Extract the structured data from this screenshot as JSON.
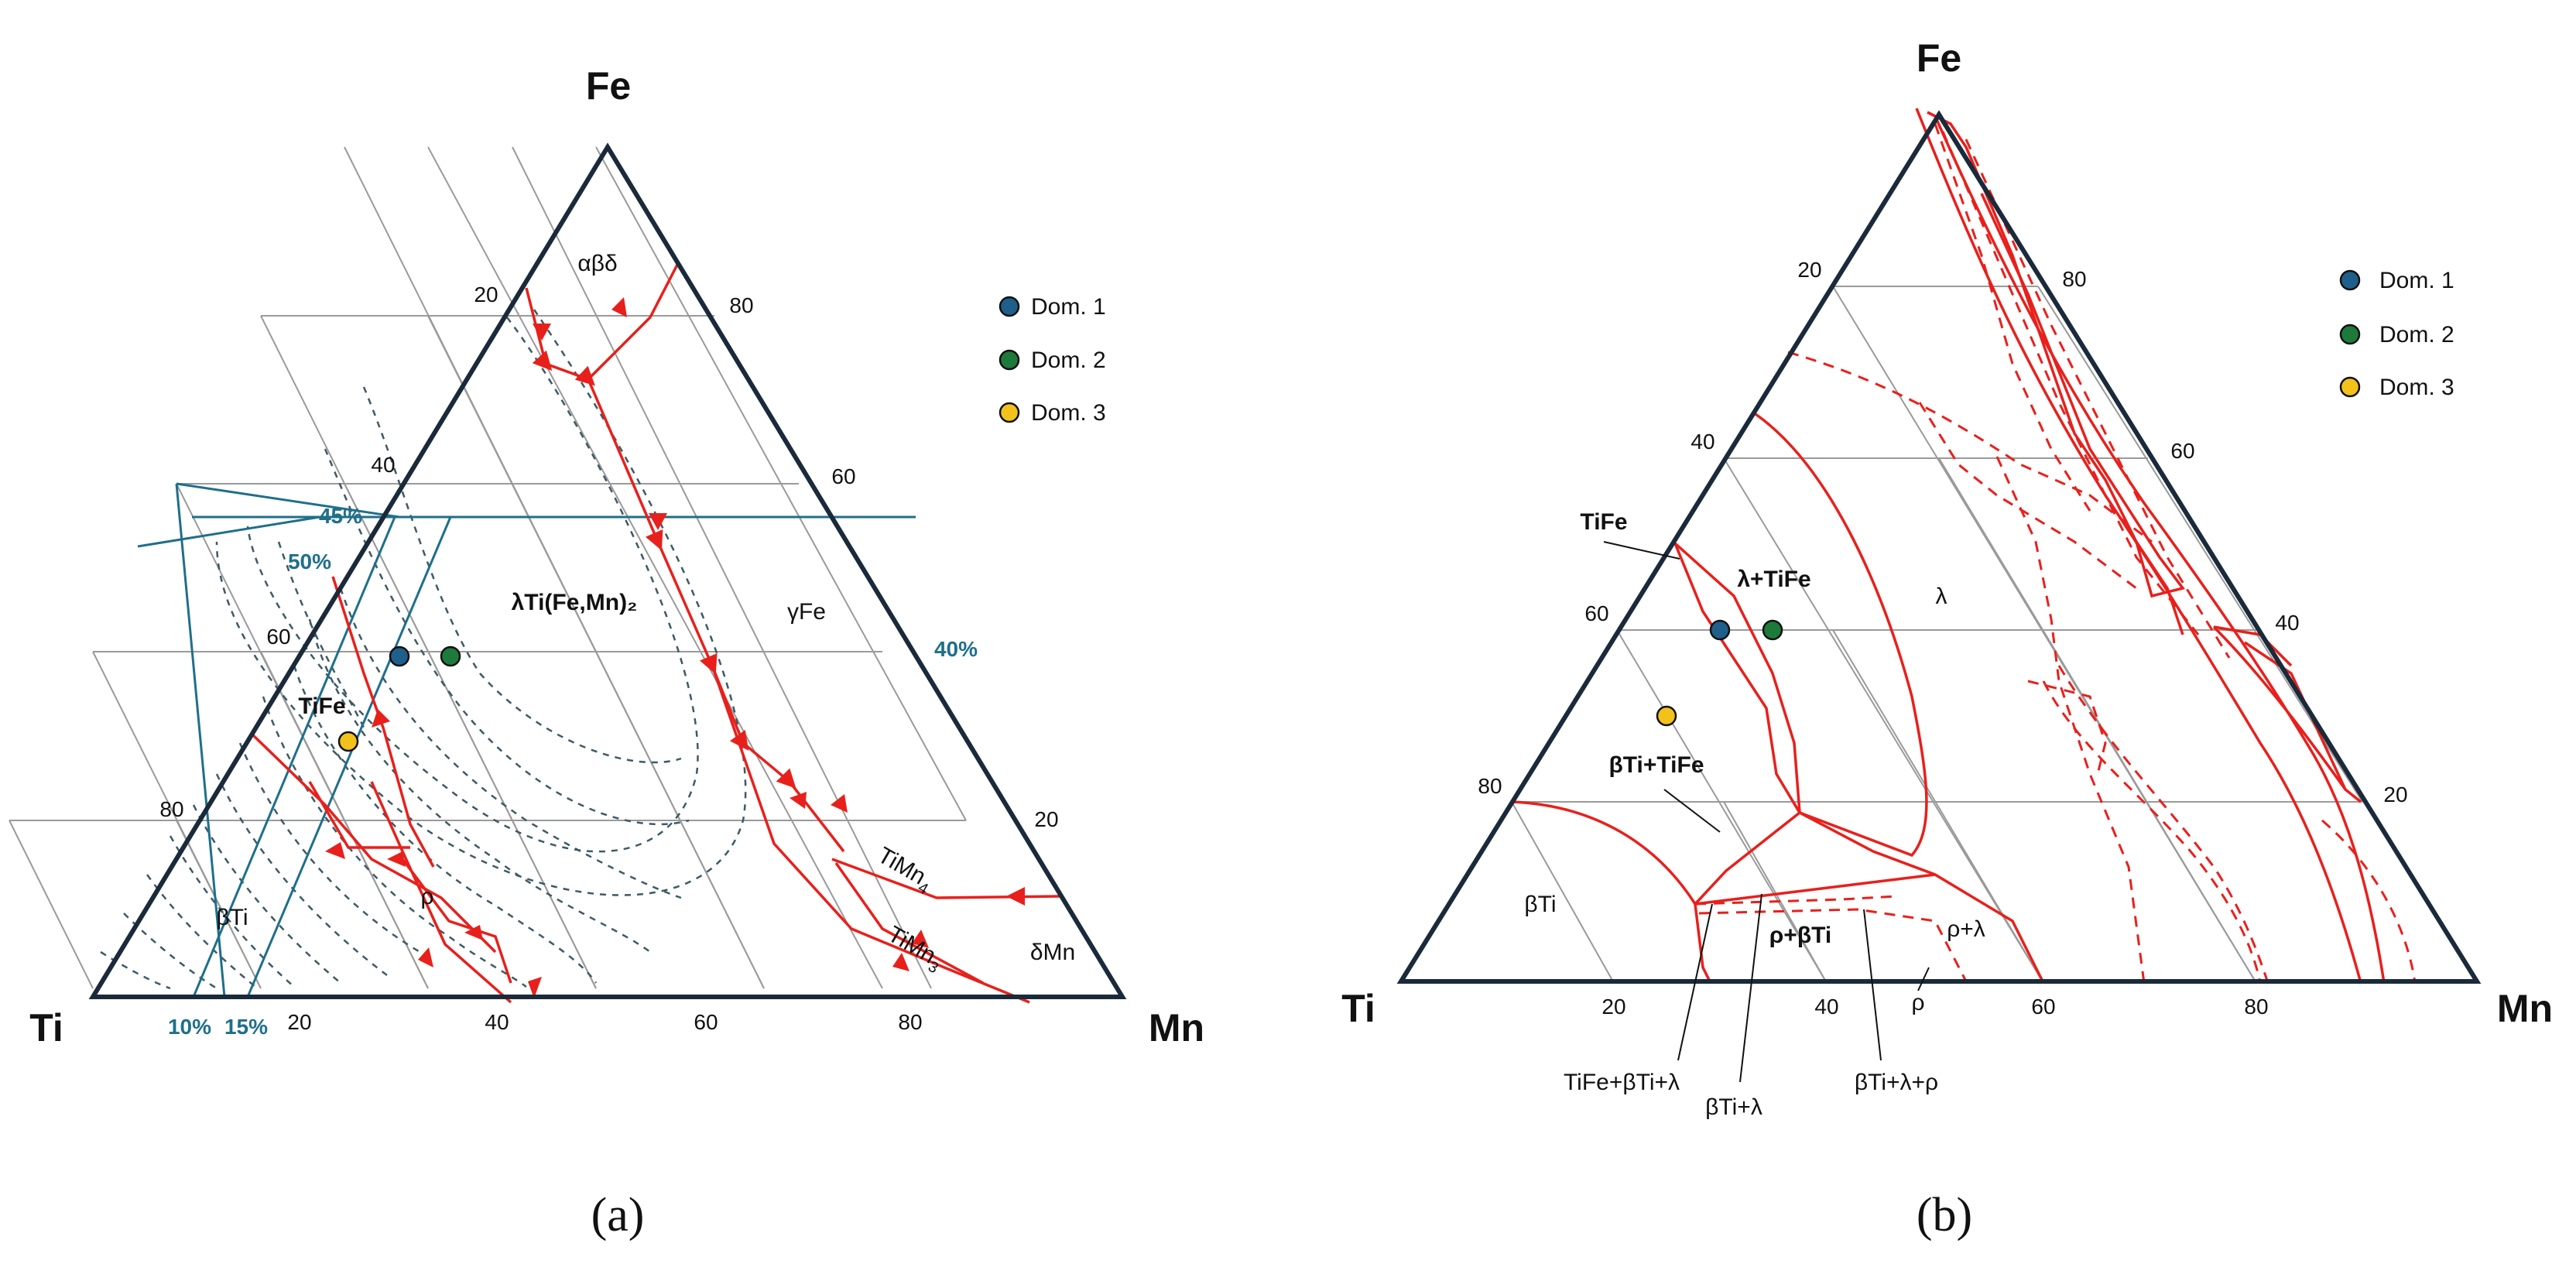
{
  "panel_a": {
    "caption": "(a)",
    "vertices": {
      "top": "Fe",
      "left": "Ti",
      "right": "Mn"
    },
    "left_ticks": [
      "20",
      "40",
      "60",
      "80"
    ],
    "right_ticks": [
      "80",
      "60",
      "20"
    ],
    "bottom_ticks": [
      "20",
      "40",
      "60",
      "80"
    ],
    "phases": [
      "αβδ",
      "λTi(Fe,Mn)₂",
      "γFe",
      "TiFe",
      "βTi",
      "ρ",
      "δMn"
    ],
    "timn4": {
      "base": "TiMn",
      "sub": "4"
    },
    "timn3": {
      "base": "TiMn",
      "sub": "3"
    },
    "blue_labels": [
      "45%",
      "50%",
      "40%",
      "10%",
      "15%"
    ],
    "legend": [
      "Dom. 1",
      "Dom. 2",
      "Dom. 3"
    ]
  },
  "panel_b": {
    "caption": "(b)",
    "vertices": {
      "top": "Fe",
      "left": "Ti",
      "right": "Mn"
    },
    "left_ticks": [
      "20",
      "40",
      "60",
      "80"
    ],
    "right_ticks": [
      "80",
      "60",
      "40",
      "20"
    ],
    "bottom_ticks": [
      "20",
      "40",
      "60",
      "80"
    ],
    "phases": [
      "λ+TiFe",
      "λ",
      "TiFe",
      "βTi+TiFe",
      "βTi",
      "ρ+βTi",
      "ρ+λ",
      "ρ"
    ],
    "callouts": [
      "TiFe+βTi+λ",
      "βTi+λ",
      "βTi+λ+ρ"
    ],
    "legend": [
      "Dom. 1",
      "Dom. 2",
      "Dom. 3"
    ]
  },
  "colors": {
    "frame": "#1a2a3a",
    "boundary": "#e8201c",
    "grid": "#9a9a9a",
    "dashed": "#3d5a66",
    "tie_line": "#1f6f8b",
    "dom1": "#1f5f8b",
    "dom2": "#1e7a3a",
    "dom3": "#f2c21b"
  }
}
